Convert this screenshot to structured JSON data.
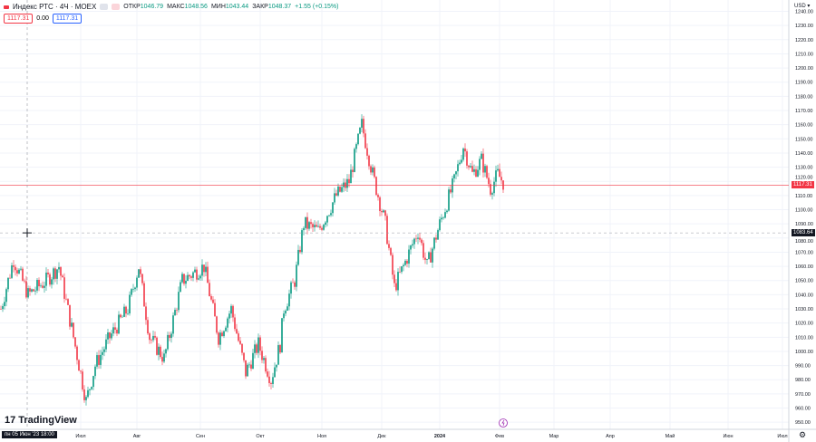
{
  "header": {
    "symbol": "Индекс РТС · 4Ч · MOEX",
    "open_label": "ОТКР",
    "open": "1046.79",
    "high_label": "МАКС",
    "high": "1048.56",
    "low_label": "МИН",
    "low": "1043.44",
    "close_label": "ЗАКР",
    "close": "1048.37",
    "change": "+1.55 (+0.15%)"
  },
  "trade": {
    "sell": "1117.31",
    "spread": "0.00",
    "buy": "1117.31"
  },
  "axis": {
    "currency": "USD"
  },
  "logo": "TradingView",
  "crosshair": {
    "time": "пн 05 Июн '23   18:00",
    "price": "1083.64"
  },
  "last_price": "1117.31",
  "colors": {
    "up": "#089981",
    "down": "#f23645",
    "grid": "#f0f3fa"
  },
  "chart_data": {
    "type": "candlestick",
    "title": "Индекс РТС · 4Ч · MOEX",
    "ylim": [
      945,
      1248
    ],
    "y_ticks": [
      950,
      960,
      970,
      980,
      990,
      1000,
      1010,
      1020,
      1030,
      1040,
      1050,
      1060,
      1070,
      1080,
      1090,
      1100,
      1110,
      1120,
      1130,
      1140,
      1150,
      1160,
      1170,
      1180,
      1190,
      1200,
      1210,
      1220,
      1230,
      1240
    ],
    "x_ticks": [
      {
        "bar": 44,
        "label": "Июл"
      },
      {
        "bar": 75,
        "label": "Авг"
      },
      {
        "bar": 110,
        "label": "Сен"
      },
      {
        "bar": 143,
        "label": "Окт"
      },
      {
        "bar": 177,
        "label": "Ноя"
      },
      {
        "bar": 210,
        "label": "Дек"
      },
      {
        "bar": 242,
        "label": "2024"
      },
      {
        "bar": 275,
        "label": "Фев"
      },
      {
        "bar": 305,
        "label": "Мар"
      },
      {
        "bar": 336,
        "label": "Апр"
      },
      {
        "bar": 369,
        "label": "Май"
      },
      {
        "bar": 401,
        "label": "Июн"
      },
      {
        "bar": 431,
        "label": "Июл"
      }
    ],
    "x_range_bars": [
      0,
      435
    ],
    "close_path": [
      [
        0,
        1030
      ],
      [
        7,
        1065
      ],
      [
        15,
        1040
      ],
      [
        25,
        1050
      ],
      [
        32,
        1060
      ],
      [
        40,
        1010
      ],
      [
        47,
        965
      ],
      [
        52,
        990
      ],
      [
        60,
        1010
      ],
      [
        70,
        1030
      ],
      [
        76,
        1060
      ],
      [
        82,
        1010
      ],
      [
        90,
        995
      ],
      [
        100,
        1050
      ],
      [
        112,
        1060
      ],
      [
        120,
        1010
      ],
      [
        127,
        1030
      ],
      [
        135,
        985
      ],
      [
        142,
        1005
      ],
      [
        149,
        980
      ],
      [
        154,
        1005
      ],
      [
        156,
        1030
      ],
      [
        162,
        1050
      ],
      [
        167,
        1090
      ],
      [
        175,
        1085
      ],
      [
        185,
        1110
      ],
      [
        192,
        1120
      ],
      [
        199,
        1160
      ],
      [
        205,
        1125
      ],
      [
        212,
        1090
      ],
      [
        217,
        1045
      ],
      [
        222,
        1060
      ],
      [
        230,
        1085
      ],
      [
        235,
        1060
      ],
      [
        242,
        1090
      ],
      [
        250,
        1120
      ],
      [
        255,
        1145
      ],
      [
        260,
        1125
      ],
      [
        265,
        1135
      ],
      [
        270,
        1115
      ],
      [
        274,
        1125
      ],
      [
        278,
        1117.31
      ]
    ]
  }
}
